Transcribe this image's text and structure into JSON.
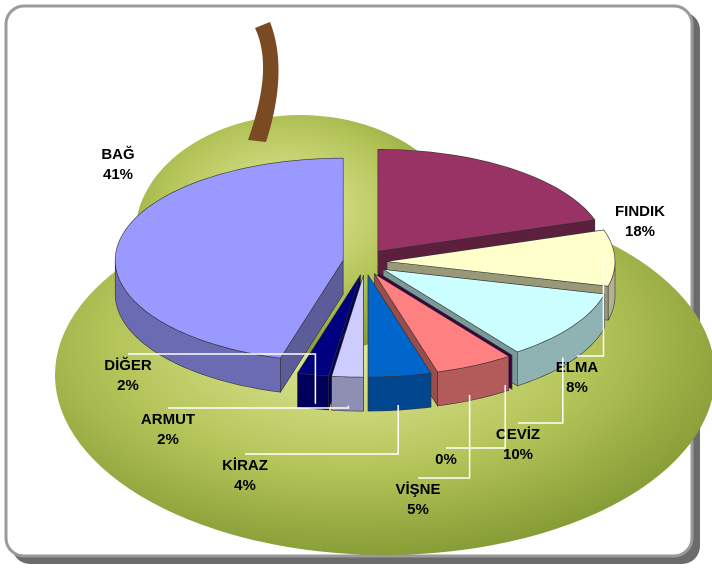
{
  "chart_data": {
    "type": "pie",
    "categories": [
      "FINDIK",
      "ELMA",
      "CEVİZ",
      null,
      "VİŞNE",
      "KİRAZ",
      "ARMUT",
      "DİĞER",
      "BAĞ"
    ],
    "values": [
      18,
      8,
      10,
      0,
      5,
      4,
      2,
      2,
      41
    ],
    "value_labels": [
      "18%",
      "8%",
      "10%",
      "0%",
      "5%",
      "4%",
      "2%",
      "2%",
      "41%"
    ],
    "colors": [
      "#993366",
      "#ffffcc",
      "#ccffff",
      "#660066",
      "#ff8080",
      "#0066cc",
      "#ccccff",
      "#000080",
      "#9999ff"
    ]
  }
}
